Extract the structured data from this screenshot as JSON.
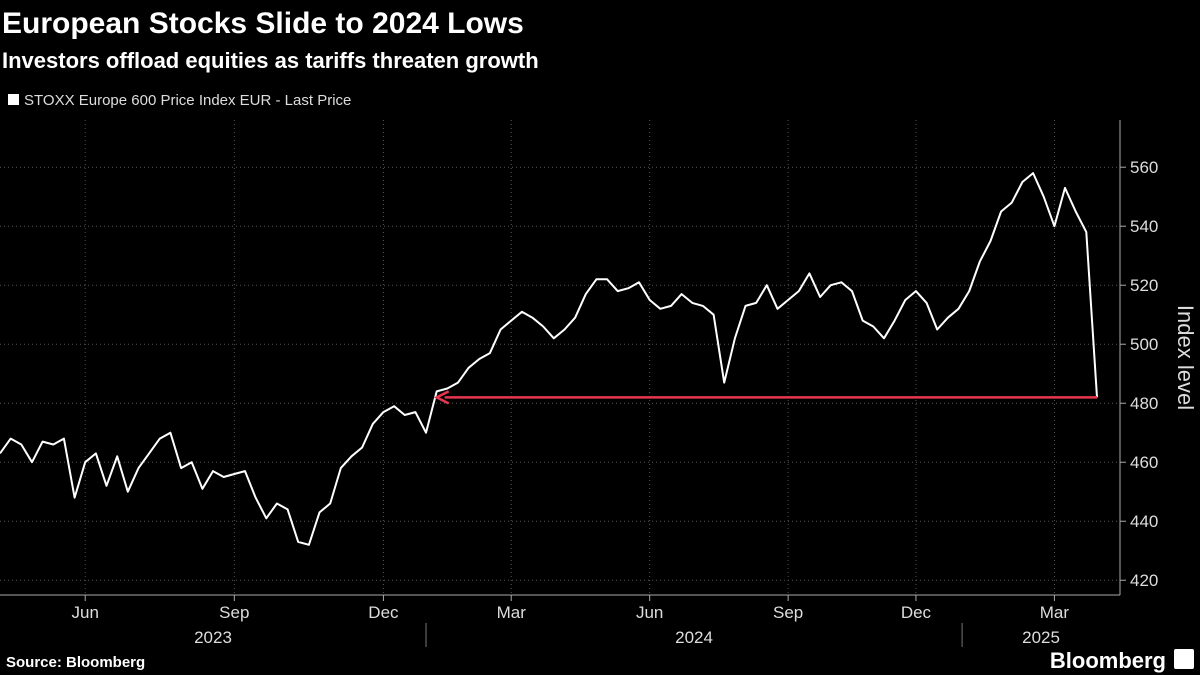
{
  "chart_data": {
    "type": "line",
    "title": "European Stocks Slide to 2024 Lows",
    "subtitle": "Investors offload equities as tariffs threaten growth",
    "y_label": "Index level",
    "source": "Source: Bloomberg",
    "brand": "Bloomberg",
    "categories": [
      null,
      null,
      null,
      null,
      null,
      null,
      null,
      null,
      "Jun",
      null,
      null,
      null,
      null,
      null,
      null,
      null,
      null,
      null,
      null,
      null,
      null,
      null,
      "Sep",
      null,
      null,
      null,
      null,
      null,
      null,
      null,
      null,
      null,
      null,
      null,
      null,
      null,
      "Dec",
      null,
      null,
      null,
      null,
      null,
      null,
      null,
      null,
      null,
      null,
      null,
      "Mar",
      null,
      null,
      null,
      null,
      null,
      null,
      null,
      null,
      null,
      null,
      null,
      null,
      "Jun",
      null,
      null,
      null,
      null,
      null,
      null,
      null,
      null,
      null,
      null,
      null,
      null,
      "Sep",
      null,
      null,
      null,
      null,
      null,
      null,
      null,
      null,
      null,
      null,
      null,
      "Dec",
      null,
      null,
      null,
      null,
      null,
      null,
      null,
      null,
      null,
      null,
      null,
      null,
      "Mar",
      null,
      null,
      null,
      null
    ],
    "years": [
      "2023",
      "2024",
      "2025"
    ],
    "series": [
      {
        "name": "STOXX Europe 600 Price Index EUR - Last Price",
        "color": "#ffffff",
        "values": [
          463,
          468,
          466,
          460,
          467,
          466,
          468,
          448,
          460,
          463,
          452,
          462,
          450,
          458,
          463,
          468,
          470,
          458,
          460,
          451,
          457,
          455,
          456,
          457,
          448,
          441,
          446,
          444,
          433,
          432,
          443,
          446,
          458,
          462,
          465,
          473,
          477,
          479,
          476,
          477,
          470,
          484,
          485,
          487,
          492,
          495,
          497,
          505,
          508,
          511,
          509,
          506,
          502,
          505,
          509,
          517,
          522,
          522,
          518,
          519,
          521,
          515,
          512,
          513,
          517,
          514,
          513,
          510,
          487,
          502,
          513,
          514,
          520,
          512,
          515,
          518,
          524,
          516,
          520,
          521,
          518,
          508,
          506,
          502,
          508,
          515,
          518,
          514,
          505,
          509,
          512,
          518,
          528,
          535,
          545,
          548,
          555,
          558,
          550,
          540,
          553,
          545,
          538,
          482
        ]
      }
    ],
    "annotation_color": "#e8364e",
    "ylim": [
      415,
      576
    ],
    "yticks": [
      420,
      440,
      460,
      480,
      500,
      520,
      540,
      560
    ],
    "grid": true
  }
}
